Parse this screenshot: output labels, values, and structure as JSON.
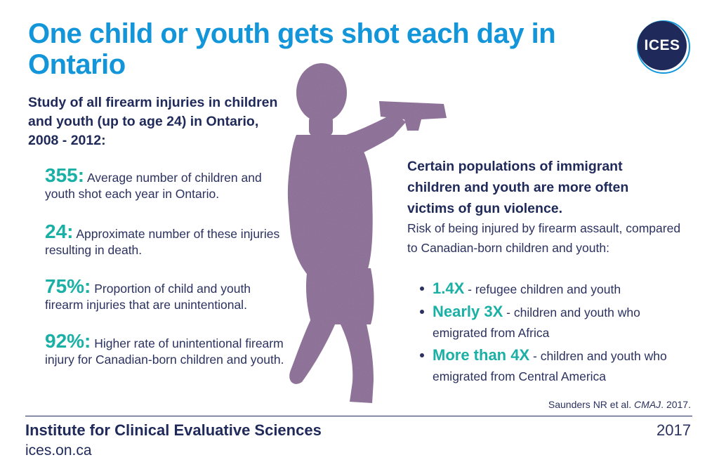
{
  "header": {
    "title": "One child or youth gets shot each day in Ontario",
    "logo_text": "ICES",
    "colors": {
      "title": "#1396d9",
      "logo_navy": "#1f2a5a",
      "accent_teal": "#1bb0a5",
      "silhouette": "#8c7096"
    }
  },
  "left": {
    "subtitle": "Study of all firearm injuries in children and youth (up to age 24) in Ontario, 2008 - 2012:",
    "stats": [
      {
        "value": "355:",
        "text": "Average number of children and youth shot each year in Ontario."
      },
      {
        "value": "24:",
        "text": "Approximate number of these injuries resulting in death."
      },
      {
        "value": "75%:",
        "text": "Proportion of child and youth firearm injuries that are unintentional."
      },
      {
        "value": "92%:",
        "text": "Higher rate of unintentional firearm injury for Canadian-born children and youth."
      }
    ]
  },
  "right": {
    "heading": "Certain populations of immigrant children and youth are more often victims of gun violence.",
    "description": "Risk of being injured by firearm assault, compared to Canadian-born children and youth:",
    "bullets": [
      {
        "highlight": "1.4X",
        "text": " - refugee children and youth"
      },
      {
        "highlight": "Nearly 3X",
        "text": " - children and youth who emigrated from Africa"
      },
      {
        "highlight": "More than 4X",
        "text": " - children and youth who emigrated from Central America"
      }
    ]
  },
  "figure": {
    "icon": "child-with-gun-silhouette-icon"
  },
  "footer": {
    "citation_authors": "Saunders NR et al. ",
    "citation_journal": "CMAJ",
    "citation_year": ". 2017.",
    "organization": "Institute for Clinical Evaluative Sciences",
    "website": "ices.on.ca",
    "year": "2017"
  }
}
